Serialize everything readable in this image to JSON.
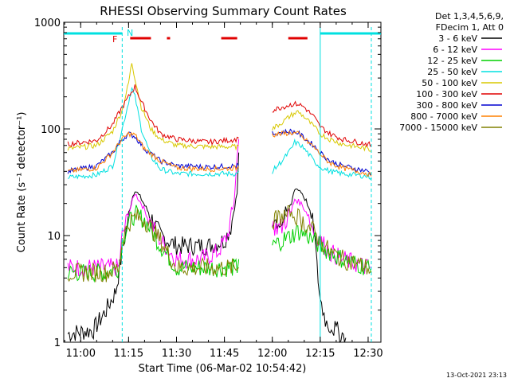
{
  "chart_data": {
    "type": "line",
    "title": "RHESSI Observing Summary Count Rates",
    "xlabel": "Start Time (06-Mar-02 10:54:42)",
    "ylabel": "Count Rate (s⁻¹ detector⁻¹)",
    "y_scale": "log",
    "ylim": [
      1,
      1000
    ],
    "xlim": [
      "10:54:42",
      "12:34:00"
    ],
    "x_ticks": [
      "11:00",
      "11:15",
      "11:30",
      "11:45",
      "12:00",
      "12:15",
      "12:30"
    ],
    "y_ticks": [
      "1",
      "10",
      "100",
      "1000"
    ],
    "legend": {
      "placement": "right",
      "header": [
        "Det 1,3,4,5,6,9,",
        "FDecim 1, Att 0"
      ],
      "entries": [
        {
          "label": "3 - 6 keV",
          "color": "#000000"
        },
        {
          "label": "6 - 12 keV",
          "color": "#ff00ff"
        },
        {
          "label": "12 - 25 keV",
          "color": "#00d000"
        },
        {
          "label": "25 - 50 keV",
          "color": "#00e0e0"
        },
        {
          "label": "50 - 100 keV",
          "color": "#d8c800"
        },
        {
          "label": "100 - 300 keV",
          "color": "#e00000"
        },
        {
          "label": "300 - 800 keV",
          "color": "#0000d0"
        },
        {
          "label": "800 - 7000 keV",
          "color": "#ff8000"
        },
        {
          "label": "7000 - 15000 keV",
          "color": "#808000"
        }
      ]
    },
    "series": [
      {
        "name": "3 - 6 keV",
        "color": "#000000",
        "points": [
          [
            "10:56",
            1.2
          ],
          [
            "11:04",
            1.3
          ],
          [
            "11:08",
            2
          ],
          [
            "11:11",
            3
          ],
          [
            "11:13",
            7
          ],
          [
            "11:15",
            15
          ],
          [
            "11:16",
            22
          ],
          [
            "11:17",
            27
          ],
          [
            "11:19",
            22
          ],
          [
            "11:22",
            15
          ],
          [
            "11:25",
            10
          ],
          [
            "11:30",
            8
          ],
          [
            "11:40",
            8
          ],
          [
            "11:45",
            9
          ],
          [
            "11:47",
            12
          ],
          [
            "11:49",
            25
          ],
          [
            "11:49.5",
            60
          ]
        ]
      },
      {
        "name": "6 - 12 keV",
        "color": "#ff00ff",
        "points": [
          [
            "10:56",
            5
          ],
          [
            "11:08",
            5
          ],
          [
            "11:12",
            5
          ],
          [
            "11:13",
            10
          ],
          [
            "11:15",
            16
          ],
          [
            "11:17",
            25
          ],
          [
            "11:19",
            20
          ],
          [
            "11:22",
            13
          ],
          [
            "11:25",
            9
          ],
          [
            "11:30",
            6
          ],
          [
            "11:38",
            6
          ],
          [
            "11:43",
            7
          ],
          [
            "11:46",
            10
          ],
          [
            "11:48",
            20
          ],
          [
            "11:49",
            55
          ],
          [
            "11:49.5",
            80
          ]
        ]
      },
      {
        "name": "12 - 25 keV",
        "color": "#00d000",
        "points": [
          [
            "10:56",
            4.5
          ],
          [
            "11:08",
            4.5
          ],
          [
            "11:12",
            5
          ],
          [
            "11:13",
            9
          ],
          [
            "11:15",
            13
          ],
          [
            "11:17",
            16
          ],
          [
            "11:20",
            14
          ],
          [
            "11:25",
            8
          ],
          [
            "11:30",
            5
          ],
          [
            "11:40",
            5
          ],
          [
            "11:49",
            5
          ],
          [
            "11:49.5",
            6
          ]
        ]
      },
      {
        "name": "25 - 50 keV",
        "color": "#00e0e0",
        "points": [
          [
            "10:56",
            35
          ],
          [
            "11:05",
            37
          ],
          [
            "11:10",
            45
          ],
          [
            "11:13",
            100
          ],
          [
            "11:15",
            180
          ],
          [
            "11:16",
            240
          ],
          [
            "11:17",
            200
          ],
          [
            "11:19",
            100
          ],
          [
            "11:22",
            55
          ],
          [
            "11:25",
            42
          ],
          [
            "11:30",
            38
          ],
          [
            "11:40",
            38
          ],
          [
            "11:49",
            38
          ],
          [
            "11:49.5",
            40
          ]
        ]
      },
      {
        "name": "50 - 100 keV",
        "color": "#d8c800",
        "points": [
          [
            "10:56",
            65
          ],
          [
            "11:05",
            70
          ],
          [
            "11:10",
            95
          ],
          [
            "11:13",
            150
          ],
          [
            "11:15",
            270
          ],
          [
            "11:16",
            420
          ],
          [
            "11:17",
            300
          ],
          [
            "11:19",
            160
          ],
          [
            "11:22",
            100
          ],
          [
            "11:25",
            80
          ],
          [
            "11:30",
            70
          ],
          [
            "11:40",
            68
          ],
          [
            "11:49",
            68
          ],
          [
            "11:49.5",
            70
          ]
        ]
      },
      {
        "name": "100 - 300 keV",
        "color": "#e00000",
        "points": [
          [
            "10:56",
            72
          ],
          [
            "11:05",
            78
          ],
          [
            "11:10",
            110
          ],
          [
            "11:13",
            160
          ],
          [
            "11:15",
            200
          ],
          [
            "11:17",
            250
          ],
          [
            "11:19",
            180
          ],
          [
            "11:22",
            120
          ],
          [
            "11:25",
            90
          ],
          [
            "11:30",
            80
          ],
          [
            "11:40",
            75
          ],
          [
            "11:49",
            80
          ],
          [
            "11:49.5",
            82
          ]
        ]
      },
      {
        "name": "300 - 800 keV",
        "color": "#0000d0",
        "points": [
          [
            "10:56",
            40
          ],
          [
            "11:05",
            45
          ],
          [
            "11:10",
            60
          ],
          [
            "11:13",
            80
          ],
          [
            "11:15",
            90
          ],
          [
            "11:17",
            85
          ],
          [
            "11:20",
            65
          ],
          [
            "11:25",
            50
          ],
          [
            "11:30",
            45
          ],
          [
            "11:40",
            44
          ],
          [
            "11:49",
            45
          ],
          [
            "11:49.5",
            46
          ]
        ]
      },
      {
        "name": "800 - 7000 keV",
        "color": "#ff8000",
        "points": [
          [
            "10:56",
            40
          ],
          [
            "11:05",
            43
          ],
          [
            "11:10",
            60
          ],
          [
            "11:13",
            80
          ],
          [
            "11:15",
            90
          ],
          [
            "11:17",
            88
          ],
          [
            "11:20",
            65
          ],
          [
            "11:25",
            50
          ],
          [
            "11:30",
            43
          ],
          [
            "11:40",
            42
          ],
          [
            "11:49",
            43
          ],
          [
            "11:49.5",
            44
          ]
        ]
      },
      {
        "name": "7000 - 15000 keV",
        "color": "#808000",
        "points": [
          [
            "10:56",
            4.5
          ],
          [
            "11:08",
            4.5
          ],
          [
            "11:12",
            5
          ],
          [
            "11:13",
            9
          ],
          [
            "11:15",
            13
          ],
          [
            "11:17",
            15
          ],
          [
            "11:20",
            14
          ],
          [
            "11:25",
            9
          ],
          [
            "11:30",
            5
          ],
          [
            "11:40",
            5
          ],
          [
            "11:49",
            5
          ],
          [
            "11:49.5",
            5
          ]
        ]
      },
      {
        "name": "3 - 6 keV ",
        "color": "#000000",
        "points": [
          [
            "12:00",
            14
          ],
          [
            "12:03",
            13
          ],
          [
            "12:06",
            20
          ],
          [
            "12:07",
            28
          ],
          [
            "12:09",
            26
          ],
          [
            "12:11",
            20
          ],
          [
            "12:13",
            12
          ],
          [
            "12:14",
            5
          ],
          [
            "12:15",
            2.5
          ],
          [
            "12:17",
            1.5
          ],
          [
            "12:20",
            1.3
          ],
          [
            "12:23",
            1.1
          ]
        ]
      },
      {
        "name": "6 - 12 keV ",
        "color": "#ff00ff",
        "points": [
          [
            "12:00",
            12
          ],
          [
            "12:03",
            12
          ],
          [
            "12:06",
            17
          ],
          [
            "12:07",
            22
          ],
          [
            "12:09",
            20
          ],
          [
            "12:11",
            16
          ],
          [
            "12:13",
            11
          ],
          [
            "12:15",
            9
          ],
          [
            "12:18",
            7
          ],
          [
            "12:22",
            6
          ],
          [
            "12:30",
            5
          ],
          [
            "12:31",
            5
          ]
        ]
      },
      {
        "name": "12 - 25 keV ",
        "color": "#00d000",
        "points": [
          [
            "12:00",
            8
          ],
          [
            "12:03",
            9
          ],
          [
            "12:06",
            10
          ],
          [
            "12:08",
            11
          ],
          [
            "12:11",
            10
          ],
          [
            "12:13",
            9
          ],
          [
            "12:15",
            8
          ],
          [
            "12:18",
            7
          ],
          [
            "12:22",
            6
          ],
          [
            "12:30",
            5
          ],
          [
            "12:31",
            4.5
          ]
        ]
      },
      {
        "name": "25 - 50 keV ",
        "color": "#00e0e0",
        "points": [
          [
            "12:00",
            40
          ],
          [
            "12:03",
            50
          ],
          [
            "12:06",
            65
          ],
          [
            "12:07",
            75
          ],
          [
            "12:09",
            70
          ],
          [
            "12:11",
            60
          ],
          [
            "12:13",
            50
          ],
          [
            "12:15",
            44
          ],
          [
            "12:18",
            40
          ],
          [
            "12:22",
            38
          ],
          [
            "12:30",
            36
          ],
          [
            "12:31",
            35
          ]
        ]
      },
      {
        "name": "50 - 100 keV ",
        "color": "#d8c800",
        "points": [
          [
            "12:00",
            100
          ],
          [
            "12:03",
            115
          ],
          [
            "12:06",
            135
          ],
          [
            "12:08",
            145
          ],
          [
            "12:10",
            130
          ],
          [
            "12:13",
            105
          ],
          [
            "12:15",
            90
          ],
          [
            "12:18",
            80
          ],
          [
            "12:22",
            72
          ],
          [
            "12:30",
            65
          ],
          [
            "12:31",
            62
          ]
        ]
      },
      {
        "name": "100 - 300 keV ",
        "color": "#e00000",
        "points": [
          [
            "12:00",
            150
          ],
          [
            "12:03",
            160
          ],
          [
            "12:06",
            170
          ],
          [
            "12:08",
            172
          ],
          [
            "12:10",
            160
          ],
          [
            "12:13",
            130
          ],
          [
            "12:15",
            105
          ],
          [
            "12:18",
            90
          ],
          [
            "12:22",
            80
          ],
          [
            "12:30",
            72
          ],
          [
            "12:31",
            70
          ]
        ]
      },
      {
        "name": "300 - 800 keV ",
        "color": "#0000d0",
        "points": [
          [
            "12:00",
            90
          ],
          [
            "12:03",
            93
          ],
          [
            "12:06",
            95
          ],
          [
            "12:08",
            92
          ],
          [
            "12:10",
            82
          ],
          [
            "12:13",
            70
          ],
          [
            "12:15",
            60
          ],
          [
            "12:18",
            50
          ],
          [
            "12:22",
            45
          ],
          [
            "12:30",
            40
          ],
          [
            "12:31",
            38
          ]
        ]
      },
      {
        "name": "800 - 7000 keV ",
        "color": "#ff8000",
        "points": [
          [
            "12:00",
            88
          ],
          [
            "12:03",
            90
          ],
          [
            "12:06",
            92
          ],
          [
            "12:08",
            90
          ],
          [
            "12:10",
            80
          ],
          [
            "12:13",
            68
          ],
          [
            "12:15",
            58
          ],
          [
            "12:18",
            48
          ],
          [
            "12:22",
            43
          ],
          [
            "12:30",
            38
          ],
          [
            "12:31",
            36
          ]
        ]
      },
      {
        "name": "7000 - 15000 keV ",
        "color": "#808000",
        "points": [
          [
            "12:00",
            14
          ],
          [
            "12:03",
            15
          ],
          [
            "12:06",
            16
          ],
          [
            "12:08",
            15
          ],
          [
            "12:10",
            13
          ],
          [
            "12:13",
            11
          ],
          [
            "12:15",
            9
          ],
          [
            "12:18",
            7
          ],
          [
            "12:22",
            6
          ],
          [
            "12:30",
            5
          ],
          [
            "12:31",
            4.5
          ]
        ]
      }
    ],
    "annotations": {
      "flare_flag_label": "F",
      "night_flag_label": "N",
      "flare_intervals": [
        [
          "11:15.5",
          "11:22"
        ],
        [
          "11:27",
          "11:28"
        ],
        [
          "11:44",
          "11:49"
        ],
        [
          "12:05",
          "12:11"
        ]
      ],
      "day_intervals": [
        [
          "10:54:42",
          "11:13"
        ],
        [
          "12:15",
          "12:34"
        ]
      ],
      "dashed_markers": [
        "11:13",
        "12:31"
      ],
      "solid_markers": [
        "12:15"
      ]
    }
  },
  "timestamp": "13-Oct-2021 23:13"
}
